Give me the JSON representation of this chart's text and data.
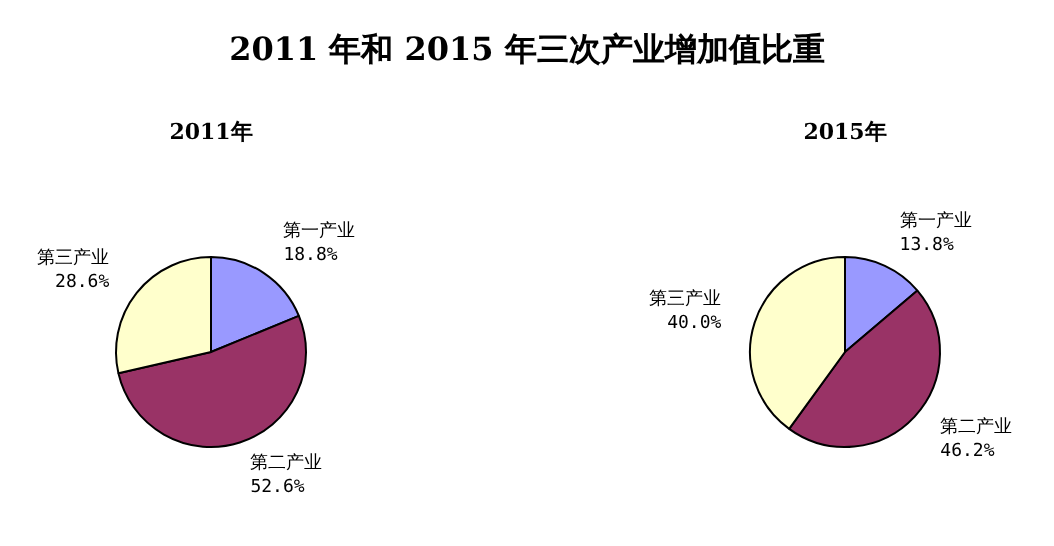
{
  "chart_data": [
    {
      "type": "pie",
      "title": "2011 年和 2015 年三次产业增加值比重",
      "subtitle": "2011年",
      "categories": [
        "第一产业",
        "第二产业",
        "第三产业"
      ],
      "values": [
        18.8,
        52.6,
        28.6
      ],
      "value_labels": [
        "18.8%",
        "52.6%",
        "28.6%"
      ],
      "colors": [
        "#9999ff",
        "#993366",
        "#ffffcc"
      ]
    },
    {
      "type": "pie",
      "subtitle": "2015年",
      "categories": [
        "第一产业",
        "第二产业",
        "第三产业"
      ],
      "values": [
        13.8,
        46.2,
        40.0
      ],
      "value_labels": [
        "13.8%",
        "46.2%",
        "40.0%"
      ],
      "colors": [
        "#9999ff",
        "#993366",
        "#ffffcc"
      ]
    }
  ]
}
